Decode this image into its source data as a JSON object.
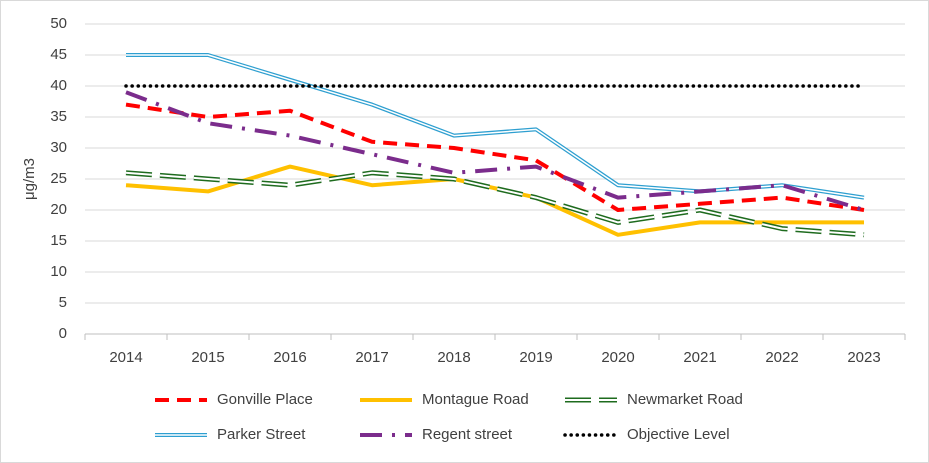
{
  "chart_data": {
    "type": "line",
    "y_label": "μg/m3",
    "categories": [
      "2014",
      "2015",
      "2016",
      "2017",
      "2018",
      "2019",
      "2020",
      "2021",
      "2022",
      "2023"
    ],
    "ylim": [
      0,
      50
    ],
    "yticks": [
      0,
      5,
      10,
      15,
      20,
      25,
      30,
      35,
      40,
      45,
      50
    ],
    "grid": true,
    "legend": "bottom",
    "series": [
      {
        "name": "Gonville Place",
        "color": "#ff0000",
        "style": "dashed",
        "values": [
          37,
          35,
          36,
          31,
          30,
          28,
          20,
          21,
          22,
          20
        ]
      },
      {
        "name": "Montague Road",
        "color": "#ffc000",
        "style": "solid",
        "values": [
          24,
          23,
          27,
          24,
          25,
          22,
          16,
          18,
          18,
          18
        ]
      },
      {
        "name": "Newmarket Road",
        "color": "#1e6b1e",
        "style": "double-dashed",
        "values": [
          26,
          25,
          24,
          26,
          25,
          22,
          18,
          20,
          17,
          16
        ]
      },
      {
        "name": "Parker Street",
        "color": "#2e9fd0",
        "style": "double",
        "values": [
          45,
          45,
          41,
          37,
          32,
          33,
          24,
          23,
          24,
          22
        ]
      },
      {
        "name": "Regent street",
        "color": "#7b2c8c",
        "style": "dash-dot",
        "values": [
          39,
          34,
          32,
          29,
          26,
          27,
          22,
          23,
          24,
          20
        ]
      },
      {
        "name": "Objective Level",
        "color": "#000000",
        "style": "dotted",
        "values": [
          40,
          40,
          40,
          40,
          40,
          40,
          40,
          40,
          40,
          40
        ]
      }
    ]
  }
}
